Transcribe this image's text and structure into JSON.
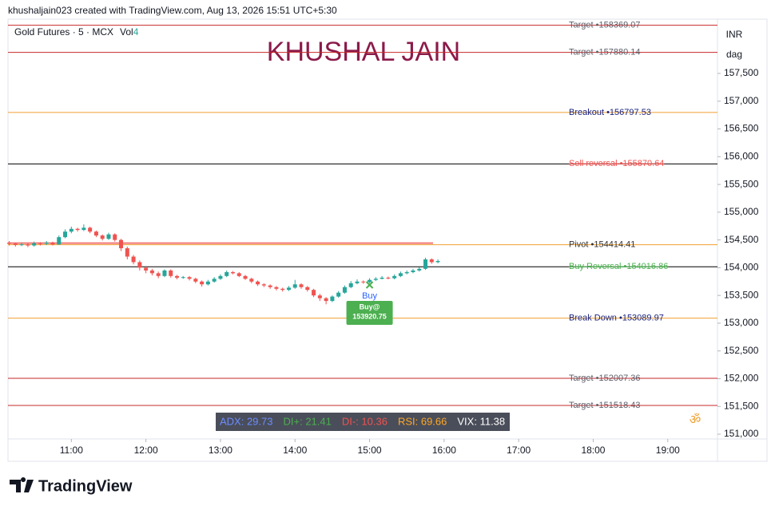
{
  "header": "khushaljain023 created with TradingView.com, Aug 13, 2026 15:51 UTC+5:30",
  "chart_data": {
    "type": "candlestick",
    "symbol": "Gold Futures · 5 · MCX",
    "volume_label": "Vol",
    "volume_value": 4,
    "watermark": "KHUSHAL JAIN",
    "currency": "INR",
    "unit": "dag",
    "x": [
      610,
      615,
      620,
      625,
      630,
      635,
      640,
      645,
      650,
      655,
      660,
      665,
      670,
      675,
      680,
      685,
      690,
      695,
      700,
      705,
      710,
      715,
      720,
      725,
      730,
      735,
      740,
      745,
      750,
      755,
      760,
      765,
      770,
      775,
      780,
      785,
      790,
      795,
      800,
      805,
      810,
      815,
      820,
      825,
      830,
      835,
      840,
      845,
      850,
      855,
      860,
      865,
      870,
      875,
      880,
      885,
      890,
      895,
      900,
      905,
      910,
      915,
      920,
      925,
      930,
      935,
      940,
      945,
      950,
      955
    ],
    "open": [
      154450,
      154430,
      154410,
      154420,
      154400,
      154440,
      154430,
      154450,
      154420,
      154550,
      154650,
      154700,
      154680,
      154720,
      154650,
      154580,
      154520,
      154600,
      154500,
      154350,
      154200,
      154100,
      154000,
      153950,
      153900,
      153850,
      153950,
      153850,
      153820,
      153830,
      153800,
      153750,
      153700,
      153750,
      153800,
      153850,
      153920,
      153900,
      153850,
      153800,
      153750,
      153700,
      153680,
      153650,
      153620,
      153600,
      153640,
      153700,
      153650,
      153600,
      153500,
      153450,
      153400,
      153480,
      153550,
      153650,
      153720,
      153750,
      153740,
      153780,
      153800,
      153820,
      153810,
      153850,
      153900,
      153920,
      153950,
      153980,
      154150,
      154100
    ],
    "high": [
      154480,
      154450,
      154450,
      154440,
      154470,
      154460,
      154480,
      154470,
      154580,
      154690,
      154740,
      154720,
      154780,
      154740,
      154670,
      154600,
      154630,
      154620,
      154520,
      154380,
      154230,
      154130,
      154030,
      153980,
      153930,
      153970,
      153970,
      153870,
      153850,
      153850,
      153820,
      153770,
      153780,
      153830,
      153880,
      153950,
      153940,
      153920,
      153870,
      153820,
      153770,
      153720,
      153700,
      153670,
      153640,
      153670,
      153780,
      153720,
      153670,
      153620,
      153530,
      153470,
      153500,
      153580,
      153680,
      153760,
      153790,
      153770,
      153810,
      153830,
      153850,
      153840,
      153880,
      153930,
      153950,
      153980,
      154010,
      154180,
      154170,
      154150
    ],
    "low": [
      154400,
      154380,
      154390,
      154370,
      154380,
      154400,
      154410,
      154400,
      154410,
      154530,
      154620,
      154650,
      154660,
      154620,
      154550,
      154490,
      154500,
      154470,
      154300,
      154150,
      154060,
      153950,
      153900,
      153860,
      153810,
      153830,
      153820,
      153790,
      153800,
      153770,
      153720,
      153660,
      153680,
      153730,
      153780,
      153830,
      153880,
      153830,
      153780,
      153720,
      153670,
      153650,
      153620,
      153590,
      153570,
      153580,
      153620,
      153620,
      153570,
      153470,
      153400,
      153340,
      153380,
      153460,
      153530,
      153630,
      153700,
      153710,
      153720,
      153760,
      153790,
      153790,
      153790,
      153830,
      153880,
      153900,
      153930,
      153960,
      154070,
      154080
    ],
    "close": [
      154430,
      154410,
      154420,
      154400,
      154440,
      154430,
      154450,
      154420,
      154550,
      154650,
      154700,
      154680,
      154720,
      154650,
      154580,
      154520,
      154600,
      154500,
      154350,
      154200,
      154100,
      154000,
      153950,
      153900,
      153850,
      153950,
      153850,
      153820,
      153830,
      153800,
      153750,
      153700,
      153750,
      153800,
      153850,
      153920,
      153900,
      153850,
      153800,
      153750,
      153700,
      153680,
      153650,
      153620,
      153600,
      153640,
      153700,
      153650,
      153600,
      153500,
      153450,
      153400,
      153480,
      153550,
      153650,
      153720,
      153750,
      153740,
      153780,
      153800,
      153820,
      153810,
      153850,
      153900,
      153920,
      153950,
      153980,
      154150,
      154100,
      154120
    ],
    "up_color": "#26a69a",
    "down_color": "#ef5350",
    "xlim": [
      609,
      1180
    ],
    "ylim": [
      150914,
      158478
    ],
    "xticks": [
      {
        "value": 660,
        "label": "11:00"
      },
      {
        "value": 720,
        "label": "12:00"
      },
      {
        "value": 780,
        "label": "13:00"
      },
      {
        "value": 840,
        "label": "14:00"
      },
      {
        "value": 900,
        "label": "15:00"
      },
      {
        "value": 960,
        "label": "16:00"
      },
      {
        "value": 1020,
        "label": "17:00"
      },
      {
        "value": 1080,
        "label": "18:00"
      },
      {
        "value": 1140,
        "label": "19:00"
      }
    ],
    "yticks": [
      {
        "value": 151000,
        "label": "151,000"
      },
      {
        "value": 151500,
        "label": "151,500"
      },
      {
        "value": 152000,
        "label": "152,000"
      },
      {
        "value": 152500,
        "label": "152,500"
      },
      {
        "value": 153000,
        "label": "153,000"
      },
      {
        "value": 153500,
        "label": "153,500"
      },
      {
        "value": 154000,
        "label": "154,000"
      },
      {
        "value": 154500,
        "label": "154,500"
      },
      {
        "value": 155000,
        "label": "155,000"
      },
      {
        "value": 155500,
        "label": "155,500"
      },
      {
        "value": 156000,
        "label": "156,000"
      },
      {
        "value": 156500,
        "label": "156,500"
      },
      {
        "value": 157000,
        "label": "157,000"
      },
      {
        "value": 157500,
        "label": "157,500"
      }
    ],
    "levels": [
      {
        "label": "Target •158369.07",
        "value": 158369.07,
        "color": "#c62828",
        "text_color": "#5d606b",
        "strike": false
      },
      {
        "label": "Target •157880.14",
        "value": 157880.14,
        "color": "#c62828",
        "text_color": "#5d606b",
        "strike": false
      },
      {
        "label": "Breakout •156797.53",
        "value": 156797.53,
        "color": "#f0a030",
        "text_color": "#1a237e",
        "strike": false
      },
      {
        "label": "Sell reversal •155870.64",
        "value": 155870.64,
        "color": "#000000",
        "text_color": "#ef5350",
        "strike": true
      },
      {
        "label": "Pivot •154414.41",
        "value": 154414.41,
        "color": "#f0a030",
        "text_color": "#333333",
        "strike": false
      },
      {
        "label": "Buy Reversal •154016.86",
        "value": 154016.86,
        "color": "#000000",
        "text_color": "#4caf50",
        "strike": true
      },
      {
        "label": "Break Down •153089.97",
        "value": 153089.97,
        "color": "#f0a030",
        "text_color": "#1a237e",
        "strike": false
      },
      {
        "label": "Target •152007.36",
        "value": 152007.36,
        "color": "#c62828",
        "text_color": "#5d606b",
        "strike": false
      },
      {
        "label": "Target •151518.43",
        "value": 151518.43,
        "color": "#c62828",
        "text_color": "#5d606b",
        "strike": false
      }
    ],
    "signal": {
      "label": "Buy",
      "x": 900,
      "box_title": "Buy@",
      "price": 153920.75,
      "color": "#4caf50"
    },
    "indicators": [
      {
        "text": "ADX: 29.73",
        "color": "#6c8cff"
      },
      {
        "text": "DI+: 21.41",
        "color": "#4caf50"
      },
      {
        "text": "DI-: 10.36",
        "color": "#ef5350"
      },
      {
        "text": "RSI: 69.66",
        "color": "#ffa726"
      },
      {
        "text": "VIX: 11.38",
        "color": "#ffffff"
      }
    ],
    "symbol_mark": "ॐ"
  },
  "footer": "TradingView"
}
